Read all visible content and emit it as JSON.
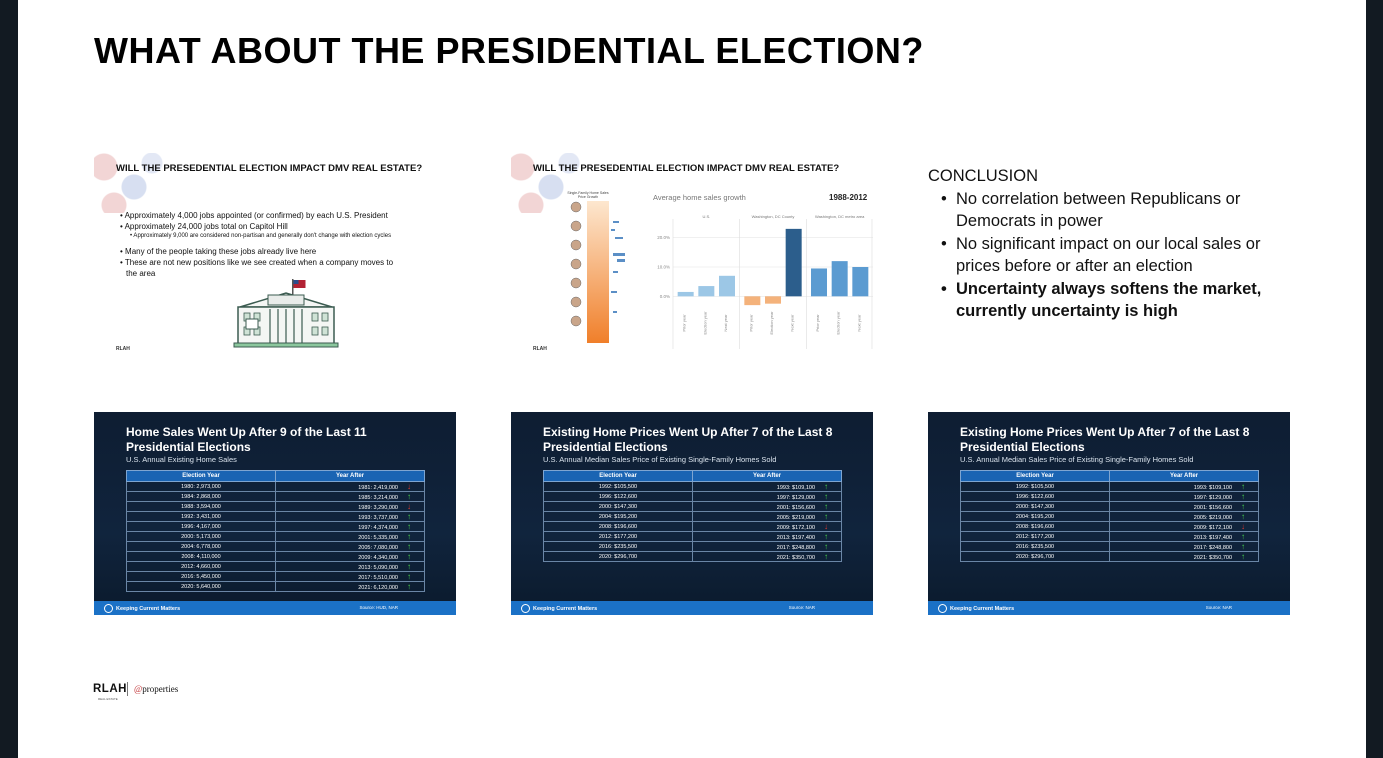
{
  "title": "WHAT ABOUT THE PRESIDENTIAL ELECTION?",
  "slide1": {
    "title": "WILL THE PRESEDENTIAL ELECTION IMPACT DMV REAL ESTATE?",
    "bullets": [
      "• Approximately 4,000 jobs appointed (or confirmed) by each U.S. President",
      "• Approximately 24,000 jobs total on Capitol Hill",
      "• Approximately 9,000 are considered non-partisan and generally don't change with election cycles",
      "• Many of the people taking these jobs already live here",
      "• These are not new positions like we see created when a company moves to",
      "the area"
    ],
    "logo": "RLAH"
  },
  "slide2": {
    "title": "WILL THE PRESEDENTIAL ELECTION IMPACT DMV REAL ESTATE?",
    "sidebar_header": "Single-Family Home Sales Price Growth",
    "logo": "RLAH",
    "chart_data": {
      "type": "bar",
      "title": "Average home sales growth",
      "subtitle": "1988-2012",
      "groups": [
        "U.S.",
        "Washington, DC County",
        "Washington, DC metro area"
      ],
      "categories": [
        "Prior year",
        "Election year",
        "Next year"
      ],
      "series": [
        {
          "name": "U.S.",
          "values": [
            1.5,
            3.5,
            7.0
          ]
        },
        {
          "name": "Washington, DC County",
          "values": [
            -3.0,
            -2.5,
            23.0
          ]
        },
        {
          "name": "Washington, DC metro area",
          "values": [
            9.5,
            12.0,
            10.0
          ]
        }
      ],
      "yticks": [
        "20.0%",
        "10.0%",
        "0.0%"
      ],
      "ylim": [
        -5,
        25
      ],
      "colors": {
        "US": "#9cc7e6",
        "DC_neg": "#f4b27b",
        "DC_pos": "#2c5e8c",
        "metro": "#5b9bd1"
      }
    }
  },
  "conclusion": {
    "heading": "CONCLUSION",
    "items": [
      {
        "text": "No correlation between Republicans or Democrats in power",
        "bold": false
      },
      {
        "text": "No significant impact on our local sales or prices before or after an election",
        "bold": false
      },
      {
        "text": "Uncertainty always softens the market, currently uncertainty is high",
        "bold": true
      }
    ]
  },
  "kcm1": {
    "title": "Home Sales Went Up After 9 of the Last 11 Presidential Elections",
    "subtitle": "U.S. Annual Existing Home Sales",
    "headers": [
      "Election Year",
      "Year After"
    ],
    "rows": [
      {
        "election": "1980: 2,973,000",
        "after": "1981: 2,419,000",
        "dir": "down"
      },
      {
        "election": "1984: 2,868,000",
        "after": "1985: 3,214,000",
        "dir": "up"
      },
      {
        "election": "1988: 3,594,000",
        "after": "1989: 3,290,000",
        "dir": "down"
      },
      {
        "election": "1992: 3,431,000",
        "after": "1993: 3,737,000",
        "dir": "up"
      },
      {
        "election": "1996: 4,167,000",
        "after": "1997: 4,374,000",
        "dir": "up"
      },
      {
        "election": "2000: 5,173,000",
        "after": "2001: 5,335,000",
        "dir": "up"
      },
      {
        "election": "2004: 6,778,000",
        "after": "2005: 7,080,000",
        "dir": "up"
      },
      {
        "election": "2008: 4,110,000",
        "after": "2009: 4,340,000",
        "dir": "up"
      },
      {
        "election": "2012: 4,660,000",
        "after": "2013: 5,090,000",
        "dir": "up"
      },
      {
        "election": "2016: 5,450,000",
        "after": "2017: 5,510,000",
        "dir": "up"
      },
      {
        "election": "2020: 5,640,000",
        "after": "2021: 6,120,000",
        "dir": "up"
      }
    ],
    "brand": "Keeping Current Matters",
    "source": "Source: HUD, NAR"
  },
  "kcm2": {
    "title": "Existing Home Prices Went Up After 7 of the Last 8 Presidential Elections",
    "subtitle": "U.S. Annual Median Sales Price of Existing Single-Family Homes Sold",
    "headers": [
      "Election Year",
      "Year After"
    ],
    "rows": [
      {
        "election": "1992: $105,500",
        "after": "1993: $109,100",
        "dir": "up"
      },
      {
        "election": "1996: $122,600",
        "after": "1997: $129,000",
        "dir": "up"
      },
      {
        "election": "2000: $147,300",
        "after": "2001: $156,600",
        "dir": "up"
      },
      {
        "election": "2004: $195,200",
        "after": "2005: $219,000",
        "dir": "up"
      },
      {
        "election": "2008: $196,600",
        "after": "2009: $172,100",
        "dir": "down"
      },
      {
        "election": "2012: $177,200",
        "after": "2013: $197,400",
        "dir": "up"
      },
      {
        "election": "2016: $235,500",
        "after": "2017: $248,800",
        "dir": "up"
      },
      {
        "election": "2020: $296,700",
        "after": "2021: $350,700",
        "dir": "up"
      }
    ],
    "brand": "Keeping Current Matters",
    "source": "Source: NAR"
  },
  "kcm3": {
    "title": "Existing Home Prices Went Up After 7 of the Last 8 Presidential Elections",
    "subtitle": "U.S. Annual Median Sales Price of Existing Single-Family Homes Sold",
    "headers": [
      "Election Year",
      "Year After"
    ],
    "rows": [
      {
        "election": "1992: $105,500",
        "after": "1993: $109,100",
        "dir": "up"
      },
      {
        "election": "1996: $122,600",
        "after": "1997: $129,000",
        "dir": "up"
      },
      {
        "election": "2000: $147,300",
        "after": "2001: $156,600",
        "dir": "up"
      },
      {
        "election": "2004: $195,200",
        "after": "2005: $219,000",
        "dir": "up"
      },
      {
        "election": "2008: $196,600",
        "after": "2009: $172,100",
        "dir": "down"
      },
      {
        "election": "2012: $177,200",
        "after": "2013: $197,400",
        "dir": "up"
      },
      {
        "election": "2016: $235,500",
        "after": "2017: $248,800",
        "dir": "up"
      },
      {
        "election": "2020: $296,700",
        "after": "2021: $350,700",
        "dir": "up"
      }
    ],
    "brand": "Keeping Current Matters",
    "source": "Source: NAR"
  },
  "footer_logo": {
    "rlah": "RLAH",
    "rlah_sub": "REAL ESTATE",
    "properties_at": "@",
    "properties": "properties"
  }
}
